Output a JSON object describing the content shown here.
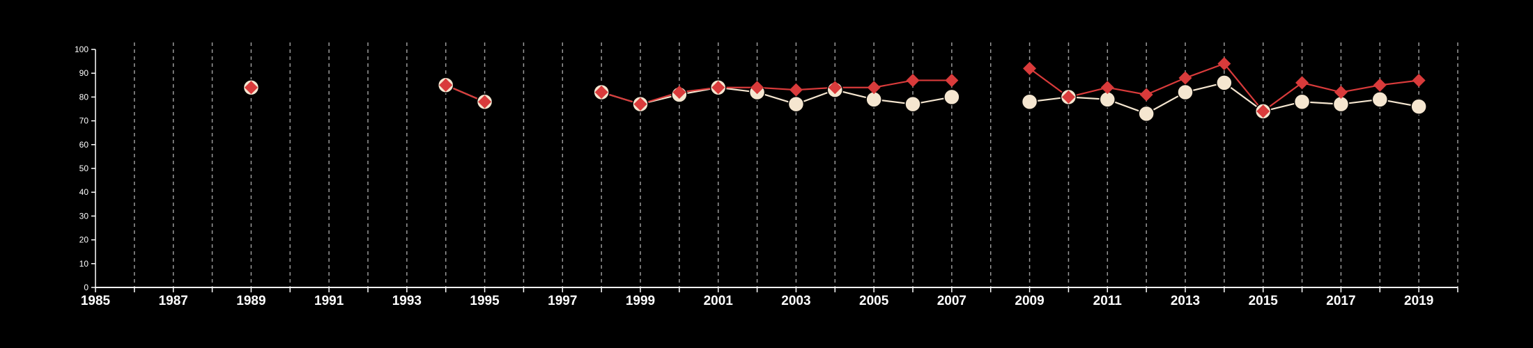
{
  "chart_data": {
    "type": "line",
    "title": "",
    "xlabel": "",
    "ylabel": "",
    "xlim": [
      1985,
      2020
    ],
    "ylim": [
      0,
      100
    ],
    "x_ticks": [
      1985,
      1987,
      1989,
      1991,
      1993,
      1995,
      1997,
      1999,
      2001,
      2003,
      2005,
      2007,
      2009,
      2011,
      2013,
      2015,
      2017,
      2019
    ],
    "y_ticks": [
      0,
      10,
      20,
      30,
      40,
      50,
      60,
      70,
      80,
      90,
      100
    ],
    "vertical_grid": "dashed, every year",
    "legend": "none",
    "series": [
      {
        "marker": "circle",
        "color": "#f5e6d0",
        "points": [
          [
            1989,
            84
          ],
          [
            1994,
            85
          ],
          [
            1995,
            78
          ],
          [
            1998,
            82
          ],
          [
            1999,
            77
          ],
          [
            2000,
            81
          ],
          [
            2001,
            84
          ],
          [
            2002,
            82
          ],
          [
            2003,
            77
          ],
          [
            2004,
            83
          ],
          [
            2005,
            79
          ],
          [
            2006,
            77
          ],
          [
            2007,
            80
          ],
          [
            2009,
            78
          ],
          [
            2010,
            80
          ],
          [
            2011,
            79
          ],
          [
            2012,
            73
          ],
          [
            2013,
            82
          ],
          [
            2014,
            86
          ],
          [
            2015,
            74
          ],
          [
            2016,
            78
          ],
          [
            2017,
            77
          ],
          [
            2018,
            79
          ],
          [
            2019,
            76
          ]
        ]
      },
      {
        "marker": "diamond",
        "color": "#d93b3b",
        "points": [
          [
            1989,
            84
          ],
          [
            1994,
            85
          ],
          [
            1995,
            78
          ],
          [
            1998,
            82
          ],
          [
            1999,
            77
          ],
          [
            2000,
            82
          ],
          [
            2001,
            84
          ],
          [
            2002,
            84
          ],
          [
            2003,
            83
          ],
          [
            2004,
            84
          ],
          [
            2005,
            84
          ],
          [
            2006,
            87
          ],
          [
            2007,
            87
          ],
          [
            2009,
            92
          ],
          [
            2010,
            80
          ],
          [
            2011,
            84
          ],
          [
            2012,
            81
          ],
          [
            2013,
            88
          ],
          [
            2014,
            94
          ],
          [
            2015,
            74
          ],
          [
            2016,
            86
          ],
          [
            2017,
            82
          ],
          [
            2018,
            85
          ],
          [
            2019,
            87
          ]
        ]
      }
    ]
  }
}
